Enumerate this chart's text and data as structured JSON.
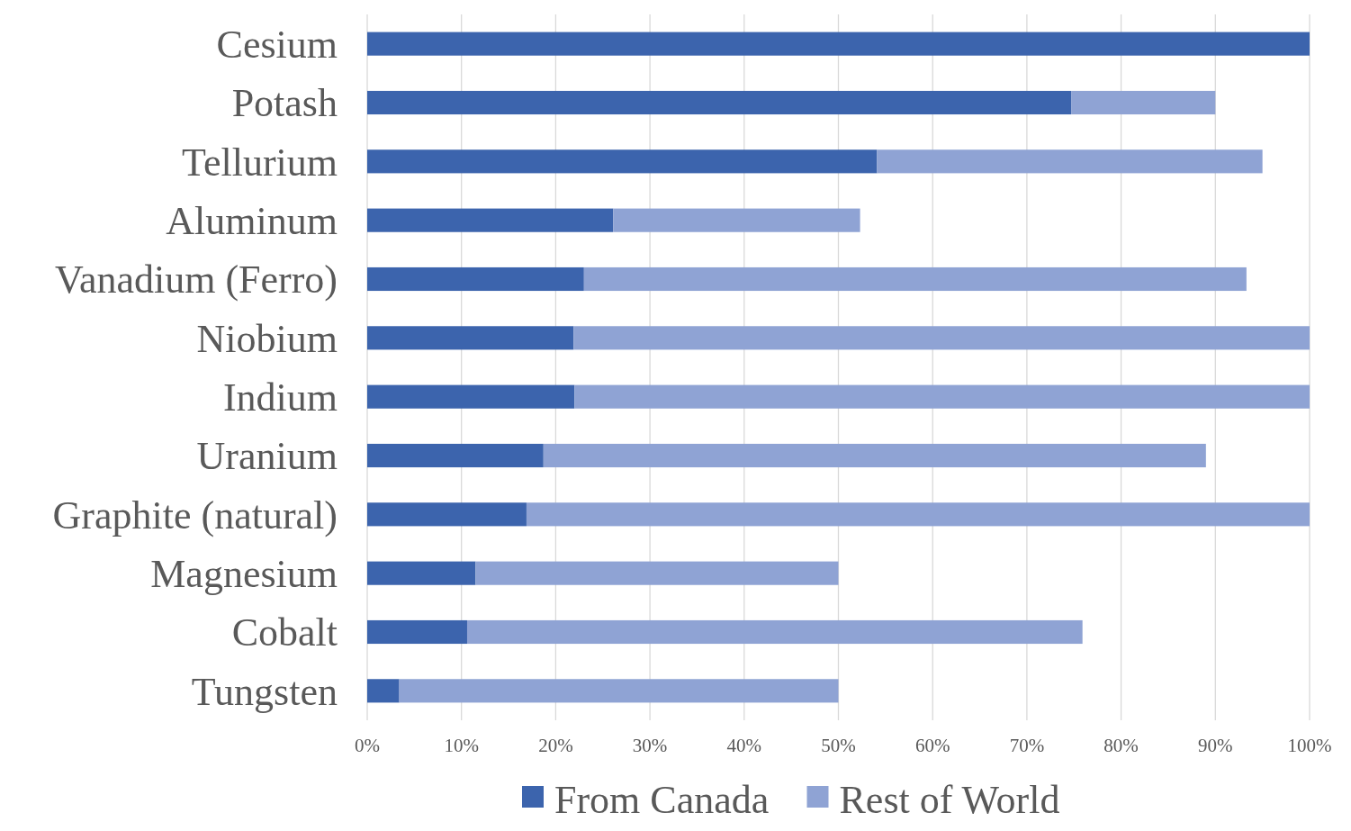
{
  "chart_data": {
    "type": "bar",
    "orientation": "horizontal",
    "stacked": true,
    "categories": [
      "Cesium",
      "Potash",
      "Tellurium",
      "Aluminum",
      "Vanadium (Ferro)",
      "Niobium",
      "Indium",
      "Uranium",
      "Graphite (natural)",
      "Magnesium",
      "Cobalt",
      "Tungsten"
    ],
    "series": [
      {
        "name": "From Canada",
        "color": "#3c64ad",
        "values": [
          100,
          74.7,
          54.1,
          26.1,
          23,
          21.9,
          22,
          18.7,
          16.9,
          11.5,
          10.6,
          3.4
        ]
      },
      {
        "name": "Rest of World",
        "color": "#8fa3d4",
        "values": [
          0,
          15.3,
          40.9,
          26.2,
          70.3,
          78.1,
          78,
          70.3,
          83.1,
          38.5,
          65.3,
          46.6
        ]
      }
    ],
    "xlim": [
      0,
      100
    ],
    "xticks": [
      {
        "value": 0,
        "label": "0%"
      },
      {
        "value": 10,
        "label": "10%"
      },
      {
        "value": 20,
        "label": "20%"
      },
      {
        "value": 30,
        "label": "30%"
      },
      {
        "value": 40,
        "label": "40%"
      },
      {
        "value": 50,
        "label": "50%"
      },
      {
        "value": 60,
        "label": "60%"
      },
      {
        "value": 70,
        "label": "70%"
      },
      {
        "value": 80,
        "label": "80%"
      },
      {
        "value": 90,
        "label": "90%"
      },
      {
        "value": 100,
        "label": "100%"
      }
    ],
    "grid": "x",
    "legend": "bottom"
  }
}
